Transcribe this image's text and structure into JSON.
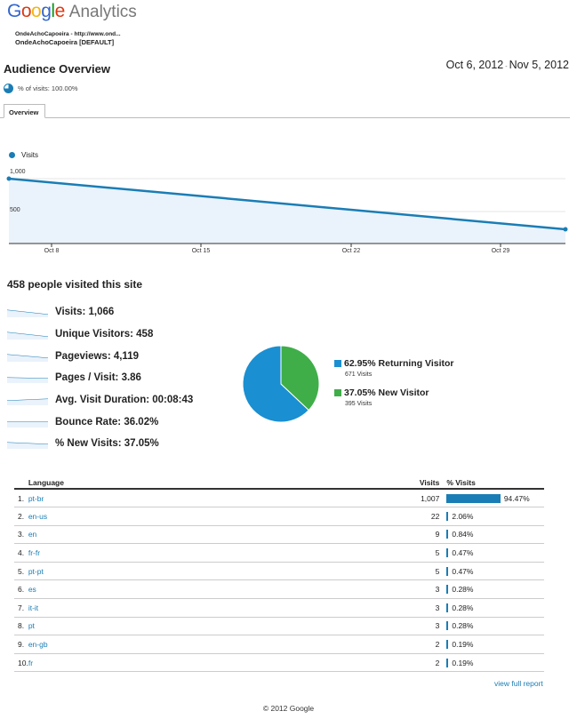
{
  "logo": {
    "g1": "G",
    "g2": "o",
    "g3": "o",
    "g4": "g",
    "g5": "l",
    "g6": "e",
    "analytics": "Analytics"
  },
  "property": {
    "url": "OndeAchoCapoeira - http://www.ond...",
    "view": "OndeAchoCapoeira [DEFAULT]"
  },
  "page_title": "Audience Overview",
  "date_range": {
    "start": "Oct 6, 2012",
    "sep": "-",
    "end": "Nov 5, 2012"
  },
  "segment": "% of visits: 100.00%",
  "tab": "Overview",
  "chart_data": {
    "type": "area",
    "series": [
      {
        "name": "Visits",
        "start_value": 1000,
        "end_value": 230
      }
    ],
    "y_ticks": [
      "1,000",
      "500"
    ],
    "y_tick_values": [
      1000,
      500
    ],
    "x_ticks": [
      "Oct 8",
      "Oct 15",
      "Oct 22",
      "Oct 29"
    ],
    "legend": "Visits",
    "colors": {
      "line": "#1a7db5",
      "fill": "#eaf2fb"
    }
  },
  "summary_heading": "458 people visited this site",
  "metrics": [
    {
      "label": "Visits: 1,066"
    },
    {
      "label": "Unique Visitors: 458"
    },
    {
      "label": "Pageviews: 4,119"
    },
    {
      "label": "Pages / Visit: 3.86"
    },
    {
      "label": "Avg. Visit Duration: 00:08:43"
    },
    {
      "label": "Bounce Rate: 36.02%"
    },
    {
      "label": "% New Visits: 37.05%"
    }
  ],
  "visitor_pie": {
    "returning": {
      "label": "62.95% Returning Visitor",
      "sub": "671 Visits",
      "value": 62.95,
      "color": "#1a8fd1"
    },
    "new": {
      "label": "37.05% New Visitor",
      "sub": "395 Visits",
      "value": 37.05,
      "color": "#3fae49"
    }
  },
  "table": {
    "headers": {
      "language": "Language",
      "visits": "Visits",
      "pct": "% Visits"
    },
    "rows": [
      {
        "n": "1.",
        "lang": "pt-br",
        "visits": "1,007",
        "pct": "94.47%",
        "v": 94.47
      },
      {
        "n": "2.",
        "lang": "en-us",
        "visits": "22",
        "pct": "2.06%",
        "v": 2.06
      },
      {
        "n": "3.",
        "lang": "en",
        "visits": "9",
        "pct": "0.84%",
        "v": 0.84
      },
      {
        "n": "4.",
        "lang": "fr-fr",
        "visits": "5",
        "pct": "0.47%",
        "v": 0.47
      },
      {
        "n": "5.",
        "lang": "pt-pt",
        "visits": "5",
        "pct": "0.47%",
        "v": 0.47
      },
      {
        "n": "6.",
        "lang": "es",
        "visits": "3",
        "pct": "0.28%",
        "v": 0.28
      },
      {
        "n": "7.",
        "lang": "it-it",
        "visits": "3",
        "pct": "0.28%",
        "v": 0.28
      },
      {
        "n": "8.",
        "lang": "pt",
        "visits": "3",
        "pct": "0.28%",
        "v": 0.28
      },
      {
        "n": "9.",
        "lang": "en-gb",
        "visits": "2",
        "pct": "0.19%",
        "v": 0.19
      },
      {
        "n": "10.",
        "lang": "fr",
        "visits": "2",
        "pct": "0.19%",
        "v": 0.19
      }
    ]
  },
  "view_full_report": "view full report",
  "footer": "© 2012 Google"
}
